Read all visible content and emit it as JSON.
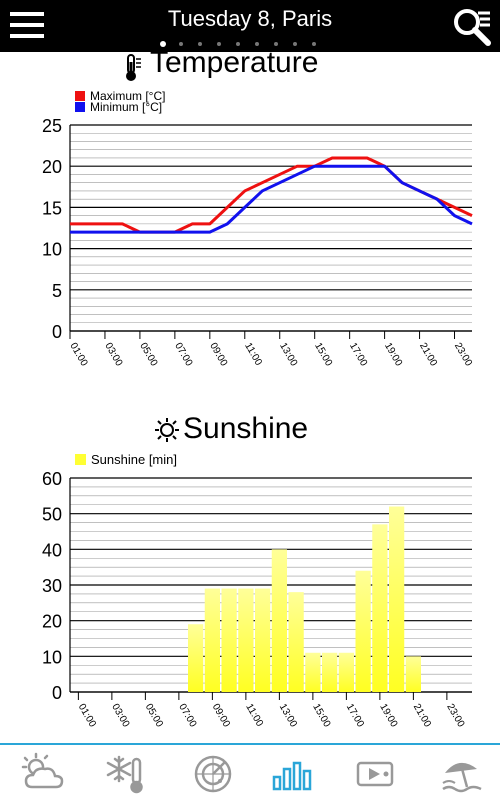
{
  "header": {
    "title": "Tuesday 8, Paris",
    "page_count": 9,
    "active_page": 0
  },
  "temperature": {
    "title": "Temperature",
    "legend_max": "Maximum [°C]",
    "legend_min": "Minimum [°C]"
  },
  "sunshine": {
    "title": "Sunshine",
    "legend": "Sunshine [min]"
  },
  "colors": {
    "max_series": "#ee1111",
    "min_series": "#1111ee",
    "sunshine_bar": "#ffff33",
    "accent": "#2aa6d8",
    "nav_icon": "#999999"
  },
  "chart_data": [
    {
      "type": "line",
      "title": "Temperature",
      "ylim": [
        0,
        25
      ],
      "yticks": [
        0,
        5,
        10,
        15,
        20,
        25
      ],
      "xlim": [
        1,
        24
      ],
      "xticks": [
        1,
        3,
        5,
        7,
        9,
        11,
        13,
        15,
        17,
        19,
        21,
        23
      ],
      "xtick_labels": [
        "01:00",
        "03:00",
        "05:00",
        "07:00",
        "09:00",
        "11:00",
        "13:00",
        "15:00",
        "17:00",
        "19:00",
        "21:00",
        "23:00"
      ],
      "grid": true,
      "legend": "top-left",
      "series": [
        {
          "name": "Maximum [°C]",
          "x": [
            1,
            2,
            3,
            4,
            5,
            6,
            7,
            8,
            9,
            10,
            11,
            12,
            13,
            14,
            15,
            16,
            17,
            18,
            19,
            20,
            21,
            22,
            23,
            24
          ],
          "y": [
            13,
            13,
            13,
            13,
            12,
            12,
            12,
            13,
            13,
            15,
            17,
            18,
            19,
            20,
            20,
            21,
            21,
            21,
            20,
            18,
            17,
            16,
            15,
            14
          ]
        },
        {
          "name": "Minimum [°C]",
          "x": [
            1,
            2,
            3,
            4,
            5,
            6,
            7,
            8,
            9,
            10,
            11,
            12,
            13,
            14,
            15,
            16,
            17,
            18,
            19,
            20,
            21,
            22,
            23,
            24
          ],
          "y": [
            12,
            12,
            12,
            12,
            12,
            12,
            12,
            12,
            12,
            13,
            15,
            17,
            18,
            19,
            20,
            20,
            20,
            20,
            20,
            18,
            17,
            16,
            14,
            13
          ]
        }
      ]
    },
    {
      "type": "bar",
      "title": "Sunshine",
      "ylim": [
        0,
        60
      ],
      "yticks": [
        0,
        10,
        20,
        30,
        40,
        50,
        60
      ],
      "xlim": [
        0.5,
        24.5
      ],
      "xticks": [
        1,
        3,
        5,
        7,
        9,
        11,
        13,
        15,
        17,
        19,
        21,
        23
      ],
      "xtick_labels": [
        "01:00",
        "03:00",
        "05:00",
        "07:00",
        "09:00",
        "11:00",
        "13:00",
        "15:00",
        "17:00",
        "19:00",
        "21:00",
        "23:00"
      ],
      "grid": true,
      "legend": "top-left",
      "series": [
        {
          "name": "Sunshine [min]",
          "x": [
            8,
            9,
            10,
            11,
            12,
            13,
            14,
            15,
            16,
            17,
            18,
            19,
            20,
            21
          ],
          "values": [
            19,
            29,
            29,
            29,
            29,
            40,
            28,
            11,
            11,
            11,
            34,
            47,
            52,
            10
          ]
        }
      ]
    }
  ],
  "nav": {
    "items": [
      "weather-icon",
      "thermometer-snow-icon",
      "radar-icon",
      "bar-chart-icon",
      "video-icon",
      "beach-icon"
    ],
    "active": 3
  }
}
